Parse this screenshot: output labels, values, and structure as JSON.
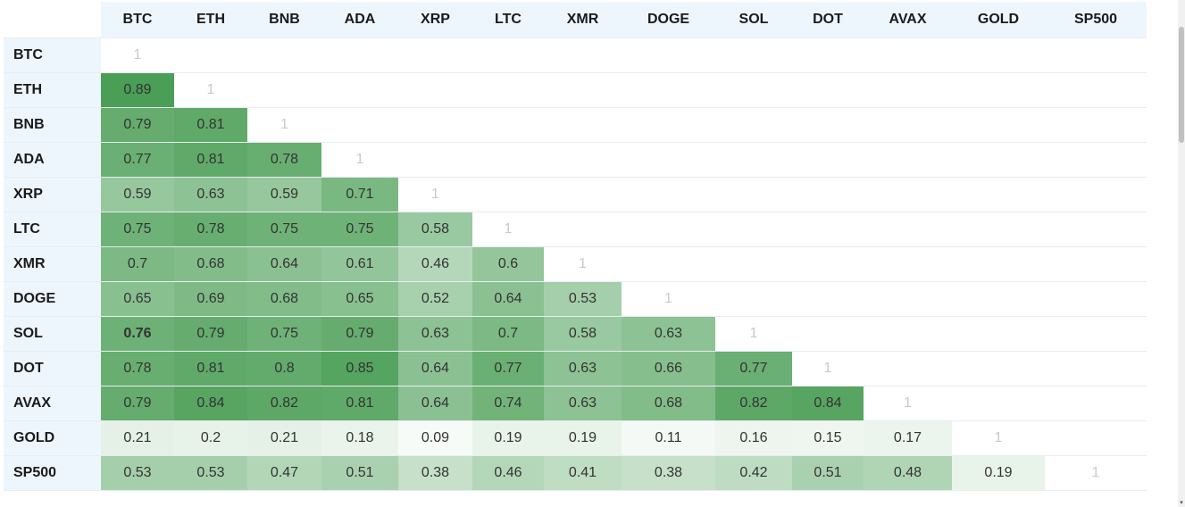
{
  "columns": [
    "BTC",
    "ETH",
    "BNB",
    "ADA",
    "XRP",
    "LTC",
    "XMR",
    "DOGE",
    "SOL",
    "DOT",
    "AVAX",
    "GOLD",
    "SP500"
  ],
  "rows": [
    {
      "label": "BTC",
      "values": [
        "1"
      ]
    },
    {
      "label": "ETH",
      "values": [
        "0.89",
        "1"
      ]
    },
    {
      "label": "BNB",
      "values": [
        "0.79",
        "0.81",
        "1"
      ]
    },
    {
      "label": "ADA",
      "values": [
        "0.77",
        "0.81",
        "0.78",
        "1"
      ]
    },
    {
      "label": "XRP",
      "values": [
        "0.59",
        "0.63",
        "0.59",
        "0.71",
        "1"
      ]
    },
    {
      "label": "LTC",
      "values": [
        "0.75",
        "0.78",
        "0.75",
        "0.75",
        "0.58",
        "1"
      ]
    },
    {
      "label": "XMR",
      "values": [
        "0.7",
        "0.68",
        "0.64",
        "0.61",
        "0.46",
        "0.6",
        "1"
      ]
    },
    {
      "label": "DOGE",
      "values": [
        "0.65",
        "0.69",
        "0.68",
        "0.65",
        "0.52",
        "0.64",
        "0.53",
        "1"
      ]
    },
    {
      "label": "SOL",
      "values": [
        "0.76",
        "0.79",
        "0.75",
        "0.79",
        "0.63",
        "0.7",
        "0.58",
        "0.63",
        "1"
      ]
    },
    {
      "label": "DOT",
      "values": [
        "0.78",
        "0.81",
        "0.8",
        "0.85",
        "0.64",
        "0.77",
        "0.63",
        "0.66",
        "0.77",
        "1"
      ]
    },
    {
      "label": "AVAX",
      "values": [
        "0.79",
        "0.84",
        "0.82",
        "0.81",
        "0.64",
        "0.74",
        "0.63",
        "0.68",
        "0.82",
        "0.84",
        "1"
      ]
    },
    {
      "label": "GOLD",
      "values": [
        "0.21",
        "0.2",
        "0.21",
        "0.18",
        "0.09",
        "0.19",
        "0.19",
        "0.11",
        "0.16",
        "0.15",
        "0.17",
        "1"
      ]
    },
    {
      "label": "SP500",
      "values": [
        "0.53",
        "0.53",
        "0.47",
        "0.51",
        "0.38",
        "0.46",
        "0.41",
        "0.38",
        "0.42",
        "0.51",
        "0.48",
        "0.19",
        "1"
      ]
    }
  ],
  "bold_cells": [
    {
      "row": 8,
      "col": 0
    }
  ],
  "colors": {
    "header_bg": "#eef6fd",
    "heat_low": "#ffffff",
    "heat_high": "#4a9e55",
    "diagonal_text": "#c9c9c9"
  }
}
